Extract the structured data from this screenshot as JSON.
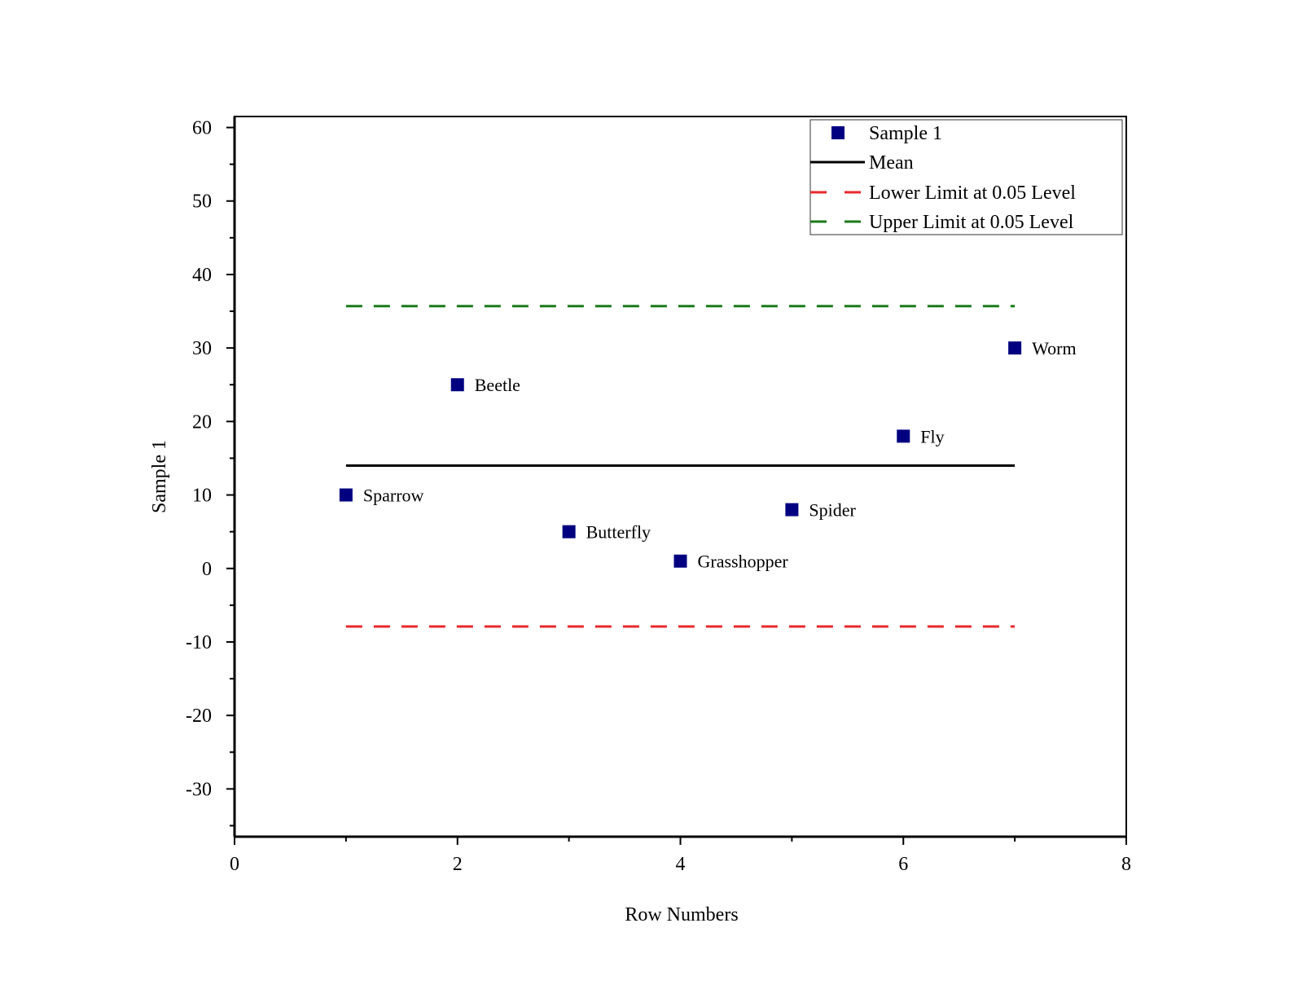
{
  "chart_data": {
    "type": "scatter",
    "xlabel": "Row Numbers",
    "ylabel": "Sample 1",
    "xlim": [
      0,
      8
    ],
    "ylim": [
      -36.5,
      61.5
    ],
    "x_ticks": [
      0,
      2,
      4,
      6,
      8
    ],
    "y_ticks": [
      -30,
      -20,
      -10,
      0,
      10,
      20,
      30,
      40,
      50,
      60
    ],
    "grid": false,
    "legend_position": "top-right",
    "series": [
      {
        "name": "Sample 1",
        "kind": "points",
        "marker": "square",
        "color": "#000080",
        "points": [
          {
            "x": 1,
            "y": 10,
            "label": "Sparrow"
          },
          {
            "x": 2,
            "y": 25,
            "label": "Beetle"
          },
          {
            "x": 3,
            "y": 5,
            "label": "Butterfly"
          },
          {
            "x": 4,
            "y": 1,
            "label": "Grasshopper"
          },
          {
            "x": 5,
            "y": 8,
            "label": "Spider"
          },
          {
            "x": 6,
            "y": 18,
            "label": "Fly"
          },
          {
            "x": 7,
            "y": 30,
            "label": "Worm"
          }
        ]
      },
      {
        "name": "Mean",
        "kind": "hline",
        "y": 14,
        "x_range": [
          1,
          7
        ],
        "color": "#000000",
        "dash": "solid"
      },
      {
        "name": "Lower Limit at 0.05 Level",
        "kind": "hline",
        "y": -7.9,
        "x_range": [
          1,
          7
        ],
        "color": "#e8282b",
        "dash": "dashed"
      },
      {
        "name": "Upper Limit at 0.05 Level",
        "kind": "hline",
        "y": 35.7,
        "x_range": [
          1,
          7
        ],
        "color": "#1a7a1a",
        "dash": "dashed"
      }
    ]
  }
}
